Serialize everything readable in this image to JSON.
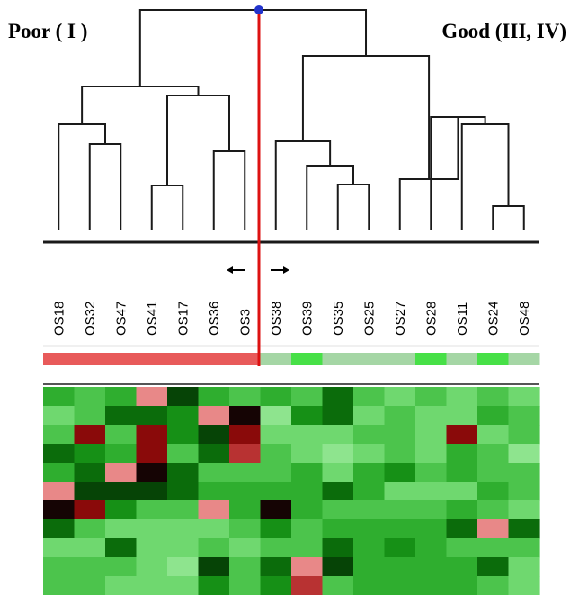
{
  "groups": {
    "left": {
      "label": "Poor ( I )",
      "color": "#e85a5a"
    },
    "right": {
      "label": "Good (III, IV)",
      "color_a": "#a5d6a5",
      "color_b": "#47e047"
    }
  },
  "samples": [
    "OS18",
    "OS32",
    "OS47",
    "OS41",
    "OS17",
    "OS36",
    "OS3",
    "OS38",
    "OS39",
    "OS35",
    "OS25",
    "OS27",
    "OS28",
    "OS11",
    "OS24",
    "OS48"
  ],
  "class_bar": [
    "poor",
    "poor",
    "poor",
    "poor",
    "poor",
    "poor",
    "poor",
    "good-a",
    "good-b",
    "good-a",
    "good-a",
    "good-a",
    "good-b",
    "good-a",
    "good-b",
    "good-a"
  ],
  "colors": {
    "cut_line": "#dd1111",
    "root_marker": "#2233cc",
    "tree": "#1a1a1a"
  },
  "heatmap": {
    "palette": {
      "G0": "#8ee48e",
      "G1": "#6fd86f",
      "G2": "#4cc44c",
      "G3": "#2fae2f",
      "G4": "#169016",
      "G5": "#0b6c0b",
      "G6": "#064406",
      "K": "#150404",
      "R1": "#8a0a0a",
      "R2": "#b83232",
      "P": "#e88888"
    },
    "rows": [
      [
        "G3",
        "G2",
        "G3",
        "P",
        "G6",
        "G3",
        "G2",
        "G3",
        "G2",
        "G5",
        "G2",
        "G1",
        "G2",
        "G1",
        "G2",
        "G1"
      ],
      [
        "G1",
        "G2",
        "G5",
        "G5",
        "G4",
        "P",
        "K",
        "G0",
        "G4",
        "G5",
        "G1",
        "G2",
        "G1",
        "G1",
        "G3",
        "G2"
      ],
      [
        "G2",
        "R1",
        "G2",
        "R1",
        "G4",
        "G6",
        "R1",
        "G1",
        "G1",
        "G1",
        "G2",
        "G2",
        "G1",
        "R1",
        "G1",
        "G2"
      ],
      [
        "G5",
        "G4",
        "G3",
        "R1",
        "G2",
        "G5",
        "R2",
        "G2",
        "G1",
        "G0",
        "G1",
        "G2",
        "G1",
        "G3",
        "G2",
        "G0"
      ],
      [
        "G3",
        "G5",
        "P",
        "K",
        "G5",
        "G2",
        "G2",
        "G2",
        "G3",
        "G1",
        "G3",
        "G4",
        "G2",
        "G3",
        "G2",
        "G2"
      ],
      [
        "P",
        "G6",
        "G6",
        "G6",
        "G5",
        "G3",
        "G3",
        "G3",
        "G3",
        "G5",
        "G3",
        "G1",
        "G1",
        "G1",
        "G3",
        "G2"
      ],
      [
        "K",
        "R1",
        "G4",
        "G2",
        "G2",
        "P",
        "G3",
        "K",
        "G3",
        "G2",
        "G2",
        "G2",
        "G2",
        "G3",
        "G2",
        "G1"
      ],
      [
        "G5",
        "G2",
        "G1",
        "G1",
        "G1",
        "G1",
        "G2",
        "G4",
        "G2",
        "G3",
        "G3",
        "G3",
        "G3",
        "G5",
        "P",
        "G5"
      ],
      [
        "G1",
        "G1",
        "G5",
        "G1",
        "G1",
        "G2",
        "G1",
        "G2",
        "G2",
        "G5",
        "G3",
        "G4",
        "G3",
        "G2",
        "G2",
        "G2"
      ],
      [
        "G2",
        "G2",
        "G2",
        "G1",
        "G0",
        "G6",
        "G2",
        "G5",
        "P",
        "G6",
        "G3",
        "G3",
        "G3",
        "G3",
        "G5",
        "G1"
      ],
      [
        "G2",
        "G2",
        "G1",
        "G1",
        "G1",
        "G4",
        "G2",
        "G4",
        "R2",
        "G2",
        "G3",
        "G3",
        "G3",
        "G3",
        "G2",
        "G1"
      ]
    ]
  }
}
